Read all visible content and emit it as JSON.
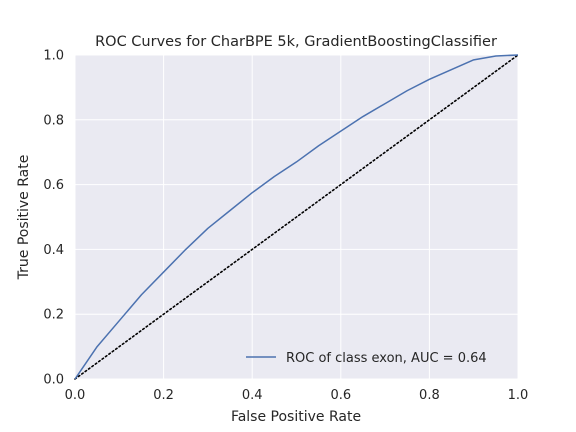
{
  "chart_data": {
    "type": "line",
    "title": "ROC Curves for CharBPE 5k, GradientBoostingClassifier",
    "xlabel": "False Positive Rate",
    "ylabel": "True Positive Rate",
    "xlim": [
      0,
      1
    ],
    "ylim": [
      0,
      1
    ],
    "xticks": [
      "0.0",
      "0.2",
      "0.4",
      "0.6",
      "0.8",
      "1.0"
    ],
    "yticks": [
      "0.0",
      "0.2",
      "0.4",
      "0.6",
      "0.8",
      "1.0"
    ],
    "grid": true,
    "legend_position": "lower-right",
    "series": [
      {
        "name": "ROC of class exon, AUC = 0.64",
        "color": "#4c72b0",
        "style": "solid",
        "x": [
          0.0,
          0.02,
          0.05,
          0.1,
          0.15,
          0.2,
          0.25,
          0.3,
          0.35,
          0.4,
          0.45,
          0.5,
          0.55,
          0.6,
          0.65,
          0.7,
          0.75,
          0.8,
          0.85,
          0.9,
          0.95,
          1.0
        ],
        "y": [
          0.0,
          0.04,
          0.1,
          0.18,
          0.26,
          0.33,
          0.4,
          0.465,
          0.52,
          0.575,
          0.625,
          0.67,
          0.72,
          0.765,
          0.81,
          0.85,
          0.89,
          0.925,
          0.955,
          0.985,
          0.997,
          1.0
        ]
      }
    ],
    "reference_line": {
      "x": [
        0,
        1
      ],
      "y": [
        0,
        1
      ],
      "color": "#000000",
      "style": "dotted"
    }
  }
}
